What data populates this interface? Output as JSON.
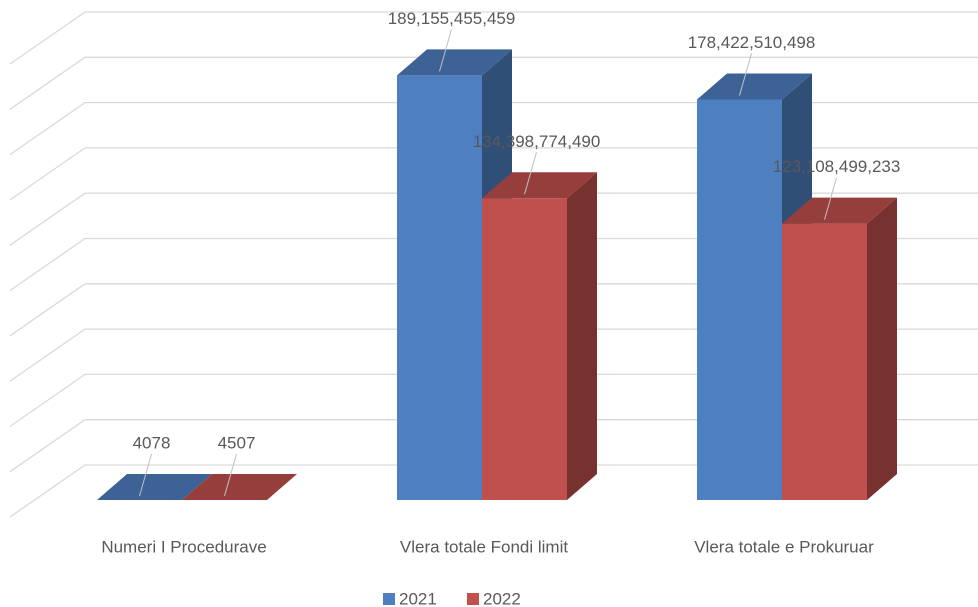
{
  "chart_data": {
    "type": "bar",
    "categories": [
      "Numeri I Procedurave",
      "Vlera totale Fondi limit",
      "Vlera totale e Prokuruar"
    ],
    "series": [
      {
        "name": "2021",
        "color": "#4e7fc0",
        "values": [
          4078,
          189155455459,
          178422510498
        ],
        "value_labels": [
          "4078",
          "189,155,455,459",
          "178,422,510,498"
        ]
      },
      {
        "name": "2022",
        "color": "#c0504d",
        "values": [
          4507,
          134398774490,
          123108499233
        ],
        "value_labels": [
          "4507",
          "134,398,774,490",
          "123,108,499,233"
        ]
      }
    ],
    "ylim": [
      0,
      200000000000
    ],
    "yticks": [
      0,
      20000000000,
      40000000000,
      60000000000,
      80000000000,
      100000000000,
      120000000000,
      140000000000,
      160000000000,
      180000000000,
      200000000000
    ],
    "grid": true,
    "legend": "bottom"
  }
}
